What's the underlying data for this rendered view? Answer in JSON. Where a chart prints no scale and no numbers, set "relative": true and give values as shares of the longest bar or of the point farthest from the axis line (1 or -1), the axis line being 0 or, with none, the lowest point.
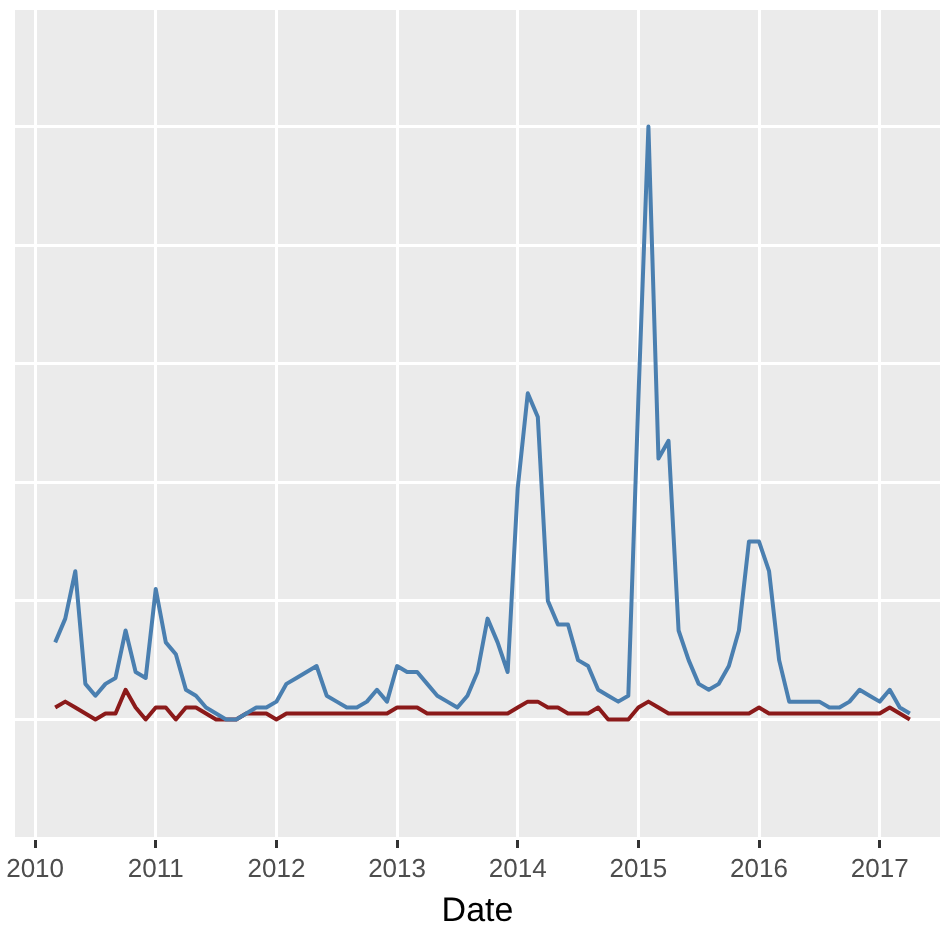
{
  "chart_data": {
    "type": "line",
    "xlabel": "Date",
    "relative": true,
    "grid": true,
    "legend": false,
    "marker": "none",
    "line_style": "solid",
    "xlim": [
      "2009-11",
      "2017-07"
    ],
    "xticks": [
      "2010",
      "2011",
      "2012",
      "2013",
      "2014",
      "2015",
      "2016",
      "2017"
    ],
    "x": [
      "2010-03",
      "2010-04",
      "2010-05",
      "2010-06",
      "2010-07",
      "2010-08",
      "2010-09",
      "2010-10",
      "2010-11",
      "2010-12",
      "2011-01",
      "2011-02",
      "2011-03",
      "2011-04",
      "2011-05",
      "2011-06",
      "2011-07",
      "2011-08",
      "2011-09",
      "2011-10",
      "2011-11",
      "2011-12",
      "2012-01",
      "2012-02",
      "2012-03",
      "2012-04",
      "2012-05",
      "2012-06",
      "2012-07",
      "2012-08",
      "2012-09",
      "2012-10",
      "2012-11",
      "2012-12",
      "2013-01",
      "2013-02",
      "2013-03",
      "2013-04",
      "2013-05",
      "2013-06",
      "2013-07",
      "2013-08",
      "2013-09",
      "2013-10",
      "2013-11",
      "2013-12",
      "2014-01",
      "2014-02",
      "2014-03",
      "2014-04",
      "2014-05",
      "2014-06",
      "2014-07",
      "2014-08",
      "2014-09",
      "2014-10",
      "2014-11",
      "2014-12",
      "2015-01",
      "2015-02",
      "2015-03",
      "2015-04",
      "2015-05",
      "2015-06",
      "2015-07",
      "2015-08",
      "2015-09",
      "2015-10",
      "2015-11",
      "2015-12",
      "2016-01",
      "2016-02",
      "2016-03",
      "2016-04",
      "2016-05",
      "2016-06",
      "2016-07",
      "2016-08",
      "2016-09",
      "2016-10",
      "2016-11",
      "2016-12",
      "2017-01",
      "2017-02",
      "2017-03",
      "2017-04"
    ],
    "series": [
      {
        "color": "#4a7fb0",
        "values": [
          0.13,
          0.17,
          0.25,
          0.06,
          0.04,
          0.06,
          0.07,
          0.15,
          0.08,
          0.07,
          0.22,
          0.13,
          0.11,
          0.05,
          0.04,
          0.02,
          0.01,
          0,
          0,
          0.01,
          0.02,
          0.02,
          0.03,
          0.06,
          0.07,
          0.08,
          0.09,
          0.04,
          0.03,
          0.02,
          0.02,
          0.03,
          0.05,
          0.03,
          0.09,
          0.08,
          0.08,
          0.06,
          0.04,
          0.03,
          0.02,
          0.04,
          0.08,
          0.17,
          0.13,
          0.08,
          0.39,
          0.55,
          0.51,
          0.2,
          0.16,
          0.16,
          0.1,
          0.09,
          0.05,
          0.04,
          0.03,
          0.04,
          0.54,
          1,
          0.44,
          0.47,
          0.15,
          0.1,
          0.06,
          0.05,
          0.06,
          0.09,
          0.15,
          0.3,
          0.3,
          0.25,
          0.1,
          0.03,
          0.03,
          0.03,
          0.03,
          0.02,
          0.02,
          0.03,
          0.05,
          0.04,
          0.03,
          0.05,
          0.02,
          0.01
        ]
      },
      {
        "color": "#8b1a1a",
        "values": [
          0.02,
          0.03,
          0.02,
          0.01,
          0,
          0.01,
          0.01,
          0.05,
          0.02,
          0,
          0.02,
          0.02,
          0,
          0.02,
          0.02,
          0.01,
          0,
          0,
          0,
          0.01,
          0.01,
          0.01,
          0,
          0.01,
          0.01,
          0.01,
          0.01,
          0.01,
          0.01,
          0.01,
          0.01,
          0.01,
          0.01,
          0.01,
          0.02,
          0.02,
          0.02,
          0.01,
          0.01,
          0.01,
          0.01,
          0.01,
          0.01,
          0.01,
          0.01,
          0.01,
          0.02,
          0.03,
          0.03,
          0.02,
          0.02,
          0.01,
          0.01,
          0.01,
          0.02,
          0,
          0,
          0,
          0.02,
          0.03,
          0.02,
          0.01,
          0.01,
          0.01,
          0.01,
          0.01,
          0.01,
          0.01,
          0.01,
          0.01,
          0.02,
          0.01,
          0.01,
          0.01,
          0.01,
          0.01,
          0.01,
          0.01,
          0.01,
          0.01,
          0.01,
          0.01,
          0.01,
          0.02,
          0.01,
          0
        ]
      }
    ]
  }
}
